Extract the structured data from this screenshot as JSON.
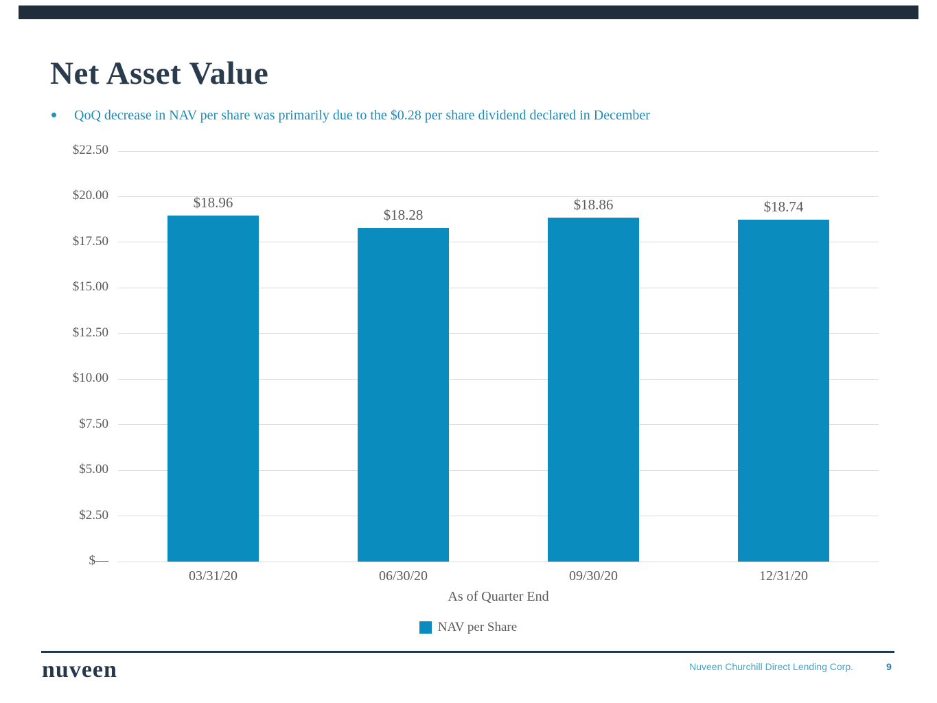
{
  "page": {
    "title": "Net Asset Value",
    "bullet": "QoQ decrease in NAV per share was primarily due to the $0.28 per share dividend declared in December"
  },
  "chart_data": {
    "type": "bar",
    "categories": [
      "03/31/20",
      "06/30/20",
      "09/30/20",
      "12/31/20"
    ],
    "series": [
      {
        "name": "NAV per Share",
        "values": [
          18.96,
          18.28,
          18.86,
          18.74
        ]
      }
    ],
    "data_labels": [
      "$18.96",
      "$18.28",
      "$18.86",
      "$18.74"
    ],
    "title": "",
    "xlabel": "As of Quarter End",
    "ylabel": "",
    "ylim": [
      0,
      22.5
    ],
    "ytick_step": 2.5,
    "ytick_labels": [
      "$—",
      "$2.50",
      "$5.00",
      "$7.50",
      "$10.00",
      "$12.50",
      "$15.00",
      "$17.50",
      "$20.00",
      "$22.50"
    ],
    "grid": true,
    "legend": [
      "NAV per Share"
    ],
    "legend_position": "bottom",
    "bar_color": "#0a8cbe"
  },
  "footer": {
    "logo": "nuveen",
    "company": "Nuveen Churchill Direct Lending Corp.",
    "page_number": "9"
  },
  "colors": {
    "accent_teal": "#0a8cbe",
    "title_navy": "#2b3b4e",
    "bullet_teal": "#1c8cba",
    "axis_gray": "#595959",
    "gridline_gray": "#d9d9d9",
    "top_bar_navy": "#202e3c",
    "footer_navy": "#25384a",
    "footer_company_teal": "#44a5cf",
    "footer_page_teal": "#1d7fad"
  }
}
